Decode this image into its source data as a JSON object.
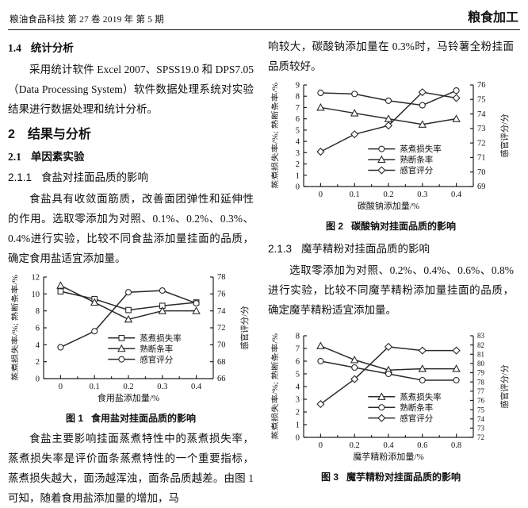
{
  "header": {
    "left": "粮油食品科技 第 27 卷 2019 年 第 5 期",
    "right": "粮食加工"
  },
  "left_column": {
    "section_1_4": {
      "num": "1.4",
      "title": "统计分析"
    },
    "para_stats": "采用统计软件 Excel 2007、SPSS19.0 和 DPS7.05（Data Processing System）软件数据处理系统对实验结果进行数据处理和统计分析。",
    "section_2": {
      "num": "2",
      "title": "结果与分析"
    },
    "section_2_1": {
      "num": "2.1",
      "title": "单因素实验"
    },
    "section_2_1_1": {
      "num": "2.1.1",
      "title": "食盐对挂面品质的影响"
    },
    "para_salt_intro": "食盐具有收敛面筋质，改善面团弹性和延伸性的作用。选取零添加为对照、0.1%、0.2%、0.3%、0.4%进行实验，比较不同食盐添加量挂面的品质，确定食用盐适宜添加量。",
    "fig1_caption": {
      "label": "图 1",
      "title": "食用盐对挂面品质的影响"
    },
    "para_salt_discussion": "食盐主要影响挂面蒸煮特性中的蒸煮损失率，蒸煮损失率是评价面条蒸煮特性的一个重要指标，蒸煮损失越大，面汤越浑浊，面条品质越差。由图 1 可知，随着食用盐添加量的增加，马"
  },
  "right_column": {
    "para_soda_conclusion": "响较大，碳酸钠添加量在 0.3%时，马铃薯全粉挂面品质较好。",
    "fig2_caption": {
      "label": "图 2",
      "title": "碳酸钠对挂面品质的影响"
    },
    "section_2_1_3": {
      "num": "2.1.3",
      "title": "魔芋精粉对挂面品质的影响"
    },
    "para_konjac_intro": "选取零添加为对照、0.2%、0.4%、0.6%、0.8%进行实验，比较不同魔芋精粉添加量挂面的品质，确定魔芋精粉适宜添加量。",
    "fig3_caption": {
      "label": "图 3",
      "title": "魔芋精粉对挂面品质的影响"
    }
  },
  "colors": {
    "ink": "#111111",
    "line": "#2a2a2a",
    "axis": "#222222",
    "background": "#ffffff"
  },
  "chart_data": [
    {
      "type": "line",
      "figure_label": "图 1",
      "title": "食用盐对挂面品质的影响",
      "xlabel": "食用盐添加量/%",
      "ylabel_left": "蒸煮损失率/%; 熟断条率/%",
      "ylabel_right": "感官评分/分",
      "x_ticks": [
        "0",
        "0.1",
        "0.2",
        "0.3",
        "0.4"
      ],
      "ylim_left": [
        0,
        12
      ],
      "ytick_step_left": 2,
      "ylim_right": [
        66,
        78
      ],
      "ytick_step_right": 2,
      "grid": false,
      "legend_position": {
        "x_frac": 0.38,
        "y_frac": 0.6
      },
      "series": [
        {
          "name": "蒸煮损失率",
          "marker": "square",
          "axis": "left",
          "values": [
            10.3,
            9.4,
            8.1,
            8.6,
            9.0
          ]
        },
        {
          "name": "熟断条率",
          "marker": "triangle",
          "axis": "left",
          "values": [
            11.0,
            9.0,
            7.0,
            8.0,
            8.0
          ]
        },
        {
          "name": "感官评分",
          "marker": "circle",
          "axis": "right",
          "values": [
            69.7,
            71.6,
            76.2,
            76.4,
            74.9
          ]
        }
      ]
    },
    {
      "type": "line",
      "figure_label": "图 2",
      "title": "碳酸钠对挂面品质的影响",
      "xlabel": "碳酸钠添加量/%",
      "ylabel_left": "蒸煮损失率/%; 熟断条率/%",
      "ylabel_right": "感官评分/分",
      "x_ticks": [
        "0",
        "0.1",
        "0.2",
        "0.3",
        "0.4"
      ],
      "ylim_left": [
        0,
        9
      ],
      "ytick_step_left": 1,
      "ylim_right": [
        69,
        76
      ],
      "ytick_step_right": 1,
      "grid": false,
      "legend_position": {
        "x_frac": 0.38,
        "y_frac": 0.63
      },
      "series": [
        {
          "name": "蒸煮损失率",
          "marker": "circle",
          "axis": "left",
          "values": [
            8.3,
            8.2,
            7.6,
            7.2,
            8.5
          ]
        },
        {
          "name": "熟断条率",
          "marker": "triangle",
          "axis": "left",
          "values": [
            7.0,
            6.5,
            6.0,
            5.5,
            6.0
          ]
        },
        {
          "name": "感官评分",
          "marker": "diamond",
          "axis": "right",
          "values": [
            71.4,
            72.6,
            73.2,
            75.5,
            75.1
          ]
        }
      ]
    },
    {
      "type": "line",
      "figure_label": "图 3",
      "title": "魔芋精粉对挂面品质的影响",
      "xlabel": "魔芋精粉添加量/%",
      "ylabel_left": "蒸煮损失率/%; 熟断条率/%",
      "ylabel_right": "感官评分/分",
      "x_ticks": [
        "0",
        "0.2",
        "0.4",
        "0.6",
        "0.8"
      ],
      "ylim_left": [
        0,
        8
      ],
      "ytick_step_left": 1,
      "ylim_right": [
        72,
        83
      ],
      "ytick_step_right": 1,
      "grid": false,
      "legend_position": {
        "x_frac": 0.38,
        "y_frac": 0.6
      },
      "series": [
        {
          "name": "蒸煮损失率",
          "marker": "triangle",
          "axis": "left",
          "values": [
            7.2,
            6.1,
            5.3,
            5.4,
            5.4
          ]
        },
        {
          "name": "熟断条率",
          "marker": "circle",
          "axis": "left",
          "values": [
            6.0,
            5.5,
            5.0,
            4.5,
            4.5
          ]
        },
        {
          "name": "感官评分",
          "marker": "diamond",
          "axis": "right",
          "values": [
            75.6,
            78.3,
            81.8,
            81.4,
            81.4
          ]
        }
      ]
    }
  ]
}
